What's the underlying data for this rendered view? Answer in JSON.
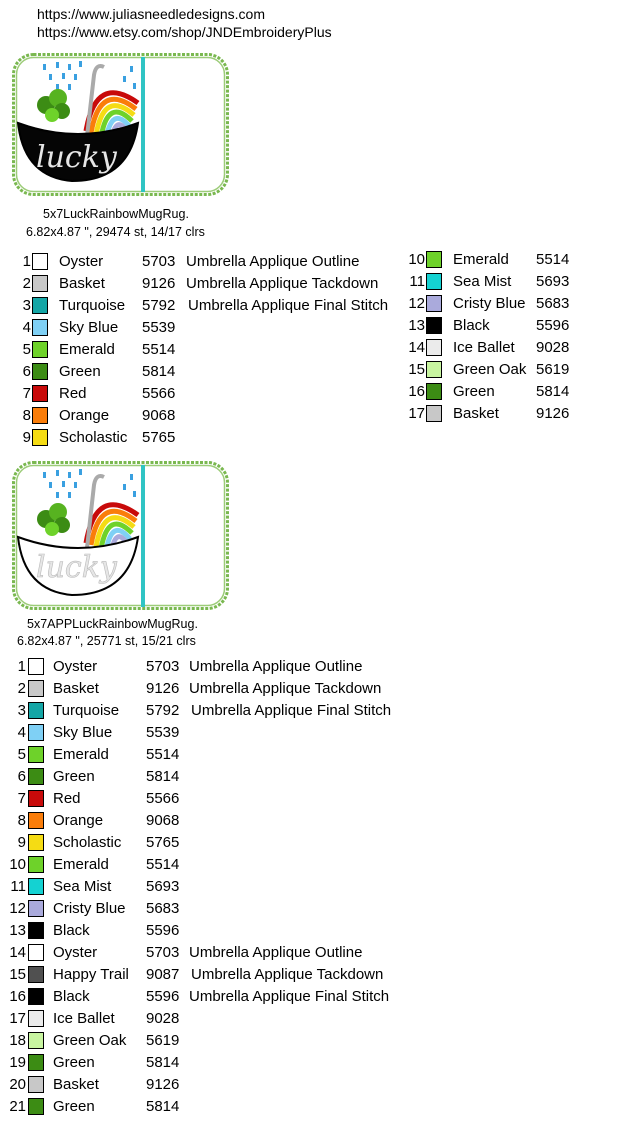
{
  "header": {
    "url1": "https://www.juliasneedledesigns.com",
    "url2": "https://www.etsy.com/shop/JNDEmbroideryPlus"
  },
  "designs": [
    {
      "name": "5x7LuckRainbowMugRug.",
      "info": "6.82x4.87 \", 29474 st, 14/17 clrs",
      "umbrella_text": "lucky",
      "umbrella_style": "filled",
      "colors": [
        {
          "num": "1",
          "name": "Oyster",
          "code": "5703",
          "note": "Umbrella Applique Outline",
          "hex": "#ffffff"
        },
        {
          "num": "2",
          "name": "Basket",
          "code": "9126",
          "note": "Umbrella Applique Tackdown",
          "hex": "#c8c8c8"
        },
        {
          "num": "3",
          "name": "Turquoise",
          "code": "5792",
          "note": "Umbrella Applique Final Stitch",
          "hex": "#14a6a6"
        },
        {
          "num": "4",
          "name": "Sky Blue",
          "code": "5539",
          "note": "",
          "hex": "#7fd0f5"
        },
        {
          "num": "5",
          "name": "Emerald",
          "code": "5514",
          "note": "",
          "hex": "#6ed22a"
        },
        {
          "num": "6",
          "name": "Green",
          "code": "5814",
          "note": "",
          "hex": "#3c8c14"
        },
        {
          "num": "7",
          "name": "Red",
          "code": "5566",
          "note": "",
          "hex": "#c80a0a"
        },
        {
          "num": "8",
          "name": "Orange",
          "code": "9068",
          "note": "",
          "hex": "#fa7d0a"
        },
        {
          "num": "9",
          "name": "Scholastic",
          "code": "5765",
          "note": "",
          "hex": "#f5dc14"
        },
        {
          "num": "10",
          "name": "Emerald",
          "code": "5514",
          "note": "",
          "hex": "#6ed22a"
        },
        {
          "num": "11",
          "name": "Sea Mist",
          "code": "5693",
          "note": "",
          "hex": "#14d2d2"
        },
        {
          "num": "12",
          "name": "Cristy Blue",
          "code": "5683",
          "note": "",
          "hex": "#aaaadc"
        },
        {
          "num": "13",
          "name": "Black",
          "code": "5596",
          "note": "",
          "hex": "#000000"
        },
        {
          "num": "14",
          "name": "Ice Ballet",
          "code": "9028",
          "note": "",
          "hex": "#ebebeb"
        },
        {
          "num": "15",
          "name": "Green Oak",
          "code": "5619",
          "note": "",
          "hex": "#c8f5a0"
        },
        {
          "num": "16",
          "name": "Green",
          "code": "5814",
          "note": "",
          "hex": "#3c8c14"
        },
        {
          "num": "17",
          "name": "Basket",
          "code": "9126",
          "note": "",
          "hex": "#c8c8c8"
        }
      ]
    },
    {
      "name": "5x7APPLuckRainbowMugRug.",
      "info": "6.82x4.87 \", 25771 st, 15/21 clrs",
      "umbrella_text": "lucky",
      "umbrella_style": "outline",
      "colors": [
        {
          "num": "1",
          "name": "Oyster",
          "code": "5703",
          "note": "Umbrella Applique Outline",
          "hex": "#ffffff"
        },
        {
          "num": "2",
          "name": "Basket",
          "code": "9126",
          "note": "Umbrella Applique Tackdown",
          "hex": "#c8c8c8"
        },
        {
          "num": "3",
          "name": "Turquoise",
          "code": "5792",
          "note": "Umbrella Applique Final Stitch",
          "hex": "#14a6a6"
        },
        {
          "num": "4",
          "name": "Sky Blue",
          "code": "5539",
          "note": "",
          "hex": "#7fd0f5"
        },
        {
          "num": "5",
          "name": "Emerald",
          "code": "5514",
          "note": "",
          "hex": "#6ed22a"
        },
        {
          "num": "6",
          "name": "Green",
          "code": "5814",
          "note": "",
          "hex": "#3c8c14"
        },
        {
          "num": "7",
          "name": "Red",
          "code": "5566",
          "note": "",
          "hex": "#c80a0a"
        },
        {
          "num": "8",
          "name": "Orange",
          "code": "9068",
          "note": "",
          "hex": "#fa7d0a"
        },
        {
          "num": "9",
          "name": "Scholastic",
          "code": "5765",
          "note": "",
          "hex": "#f5dc14"
        },
        {
          "num": "10",
          "name": "Emerald",
          "code": "5514",
          "note": "",
          "hex": "#6ed22a"
        },
        {
          "num": "11",
          "name": "Sea Mist",
          "code": "5693",
          "note": "",
          "hex": "#14d2d2"
        },
        {
          "num": "12",
          "name": "Cristy Blue",
          "code": "5683",
          "note": "",
          "hex": "#aaaadc"
        },
        {
          "num": "13",
          "name": "Black",
          "code": "5596",
          "note": "",
          "hex": "#000000"
        },
        {
          "num": "14",
          "name": "Oyster",
          "code": "5703",
          "note": "Umbrella Applique Outline",
          "hex": "#ffffff"
        },
        {
          "num": "15",
          "name": "Happy Trail",
          "code": "9087",
          "note": "Umbrella Applique Tackdown",
          "hex": "#505050"
        },
        {
          "num": "16",
          "name": "Black",
          "code": "5596",
          "note": "Umbrella Applique Final Stitch",
          "hex": "#000000"
        },
        {
          "num": "17",
          "name": "Ice Ballet",
          "code": "9028",
          "note": "",
          "hex": "#ebebeb"
        },
        {
          "num": "18",
          "name": "Green Oak",
          "code": "5619",
          "note": "",
          "hex": "#c8f5a0"
        },
        {
          "num": "19",
          "name": "Green",
          "code": "5814",
          "note": "",
          "hex": "#3c8c14"
        },
        {
          "num": "20",
          "name": "Basket",
          "code": "9126",
          "note": "",
          "hex": "#c8c8c8"
        },
        {
          "num": "21",
          "name": "Green",
          "code": "5814",
          "note": "",
          "hex": "#3c8c14"
        }
      ]
    }
  ]
}
